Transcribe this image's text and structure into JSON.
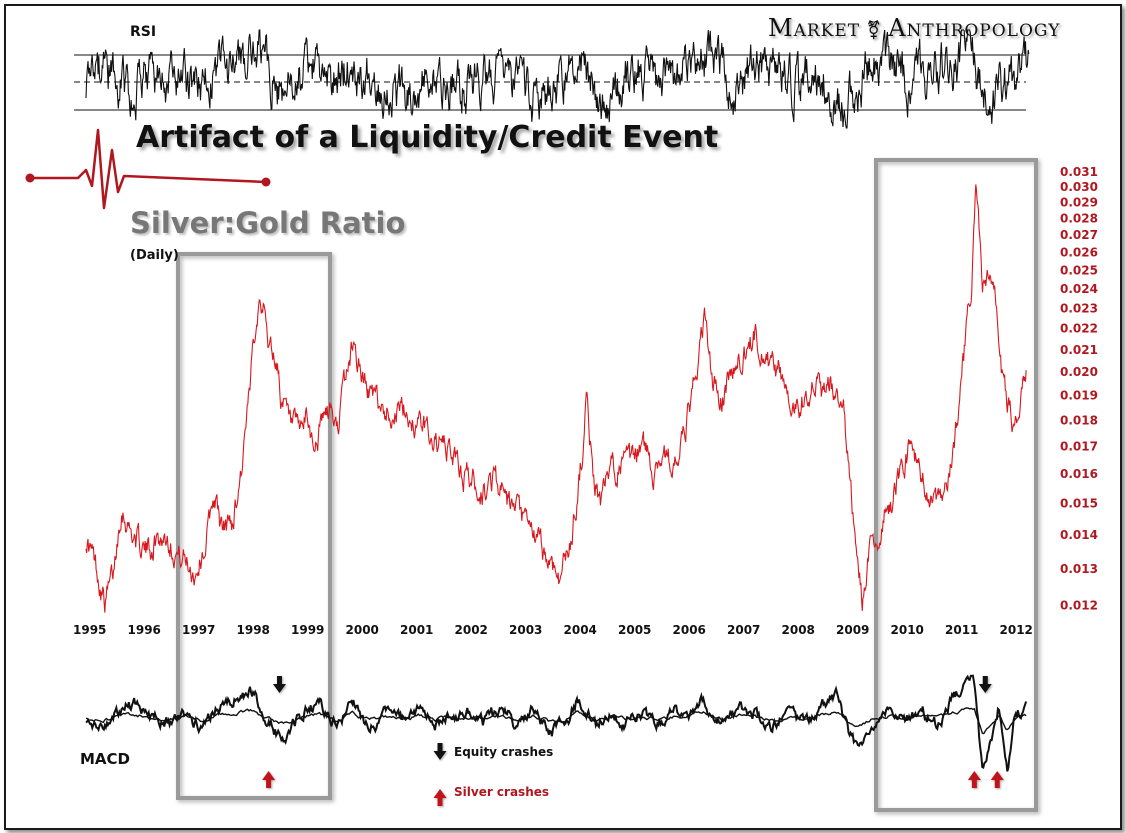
{
  "brand": {
    "left": "Market",
    "right": "Anthropology",
    "separator": "⚧"
  },
  "title": "Artifact of a Liquidity/Credit Event",
  "subtitle": "Silver:Gold Ratio",
  "frequency": "(Daily)",
  "panels": {
    "rsi_label": "RSI",
    "macd_label": "MACD"
  },
  "legend": {
    "equity": "Equity crashes",
    "silver": "Silver crashes"
  },
  "colors": {
    "ratio_line": "#d7191f",
    "axis_labels": "#b0171f",
    "macd_line": "#111111",
    "rsi_line": "#111111",
    "box": "#9a9a9a",
    "equity_arrow": "#111111",
    "silver_arrow": "#c0141a"
  },
  "chart_data": [
    {
      "type": "line",
      "title": "Silver:Gold Ratio",
      "scale": "log",
      "x_tick_labels": [
        "1995",
        "1996",
        "1997",
        "1998",
        "1999",
        "2000",
        "2001",
        "2002",
        "2003",
        "2004",
        "2005",
        "2006",
        "2007",
        "2008",
        "2009",
        "2010",
        "2011",
        "2012"
      ],
      "y_tick_labels": [
        "0.031",
        "0.030",
        "0.029",
        "0.028",
        "0.027",
        "0.026",
        "0.025",
        "0.024",
        "0.023",
        "0.022",
        "0.021",
        "0.020",
        "0.019",
        "0.018",
        "0.017",
        "0.016",
        "0.015",
        "0.014",
        "0.013",
        "0.012"
      ],
      "ylim": [
        0.012,
        0.031
      ],
      "series": [
        {
          "x": [
            1995.0,
            1995.2,
            1995.35,
            1995.5,
            1995.65,
            1995.8,
            1995.95,
            1996.1,
            1996.3,
            1996.5,
            1996.7,
            1996.85,
            1997.0,
            1997.2,
            1997.35,
            1997.5,
            1997.7,
            1997.85,
            1998.0,
            1998.1,
            1998.2,
            1998.35,
            1998.5,
            1998.6,
            1998.75,
            1998.9,
            1999.05,
            1999.2,
            1999.35,
            1999.5,
            1999.6,
            1999.75,
            1999.9,
            2000.1,
            2000.3,
            2000.5,
            2000.7,
            2000.9,
            2001.1,
            2001.3,
            2001.5,
            2001.7,
            2001.9,
            2002.1,
            2002.3,
            2002.5,
            2002.7,
            2002.9,
            2003.1,
            2003.3,
            2003.5,
            2003.7,
            2003.9,
            2004.05,
            2004.2,
            2004.3,
            2004.45,
            2004.6,
            2004.8,
            2005.0,
            2005.2,
            2005.4,
            2005.6,
            2005.8,
            2006.0,
            2006.2,
            2006.35,
            2006.5,
            2006.65,
            2006.8,
            2007.0,
            2007.15,
            2007.3,
            2007.5,
            2007.7,
            2007.9,
            2008.05,
            2008.2,
            2008.35,
            2008.5,
            2008.65,
            2008.8,
            2008.9,
            2009.0,
            2009.1,
            2009.25,
            2009.4,
            2009.55,
            2009.7,
            2009.85,
            2010.0,
            2010.15,
            2010.3,
            2010.45,
            2010.6,
            2010.75,
            2010.9,
            2011.05,
            2011.15,
            2011.25,
            2011.33,
            2011.45,
            2011.6,
            2011.7,
            2011.8,
            2011.95,
            2012.05,
            2012.15,
            2012.25
          ],
          "values": [
            0.0139,
            0.013,
            0.0121,
            0.0128,
            0.015,
            0.0142,
            0.0138,
            0.0135,
            0.0139,
            0.014,
            0.0134,
            0.0132,
            0.0129,
            0.0138,
            0.0153,
            0.0141,
            0.0145,
            0.0162,
            0.0188,
            0.0222,
            0.024,
            0.0214,
            0.0205,
            0.0187,
            0.0177,
            0.0174,
            0.018,
            0.017,
            0.018,
            0.0185,
            0.0175,
            0.0195,
            0.0214,
            0.0195,
            0.0188,
            0.0184,
            0.0184,
            0.0183,
            0.0178,
            0.0176,
            0.017,
            0.0168,
            0.016,
            0.0158,
            0.0153,
            0.016,
            0.015,
            0.0147,
            0.0142,
            0.0138,
            0.0132,
            0.0128,
            0.0138,
            0.0158,
            0.0188,
            0.016,
            0.015,
            0.016,
            0.0165,
            0.0162,
            0.0172,
            0.0162,
            0.0168,
            0.0162,
            0.0175,
            0.02,
            0.0225,
            0.0195,
            0.0188,
            0.0198,
            0.0205,
            0.021,
            0.0218,
            0.0205,
            0.02,
            0.0192,
            0.0185,
            0.019,
            0.0198,
            0.0188,
            0.0195,
            0.0188,
            0.0182,
            0.016,
            0.014,
            0.0121,
            0.0135,
            0.014,
            0.0148,
            0.0155,
            0.0165,
            0.017,
            0.016,
            0.0155,
            0.0148,
            0.015,
            0.0165,
            0.0195,
            0.0215,
            0.024,
            0.03,
            0.024,
            0.0245,
            0.0232,
            0.02,
            0.0185,
            0.0178,
            0.019,
            0.0202
          ]
        }
      ]
    },
    {
      "type": "line",
      "title": "RSI",
      "series": [
        {
          "x": [
            1995.0,
            1995.4,
            1995.8,
            1996.2,
            1996.6,
            1997.0,
            1997.3,
            1997.6,
            1997.9,
            1998.1,
            1998.3,
            1998.6,
            1998.9,
            1999.2,
            1999.5,
            1999.8,
            2000.1,
            2000.5,
            2000.9,
            2001.3,
            2001.7,
            2002.1,
            2002.5,
            2002.9,
            2003.3,
            2003.7,
            2004.1,
            2004.5,
            2004.9,
            2005.3,
            2005.7,
            2006.1,
            2006.5,
            2006.9,
            2007.3,
            2007.7,
            2008.1,
            2008.5,
            2008.9,
            2009.3,
            2009.7,
            2010.1,
            2010.5,
            2010.9,
            2011.2,
            2011.5,
            2011.8,
            2012.1,
            2012.3
          ],
          "values": [
            48,
            62,
            44,
            55,
            50,
            46,
            58,
            64,
            60,
            72,
            68,
            40,
            52,
            60,
            45,
            63,
            56,
            48,
            42,
            52,
            45,
            50,
            58,
            44,
            40,
            47,
            70,
            36,
            52,
            58,
            47,
            62,
            72,
            46,
            60,
            54,
            48,
            58,
            30,
            55,
            65,
            52,
            60,
            62,
            78,
            38,
            46,
            54,
            66
          ]
        }
      ]
    },
    {
      "type": "line",
      "title": "MACD",
      "series": [
        {
          "x": [
            1995.0,
            1995.3,
            1995.6,
            1995.9,
            1996.2,
            1996.5,
            1996.8,
            1997.1,
            1997.4,
            1997.7,
            1998.0,
            1998.2,
            1998.4,
            1998.6,
            1998.8,
            1999.0,
            1999.3,
            1999.6,
            1999.9,
            2000.2,
            2000.5,
            2000.8,
            2001.1,
            2001.4,
            2001.7,
            2002.0,
            2002.3,
            2002.6,
            2002.9,
            2003.2,
            2003.5,
            2003.8,
            2004.0,
            2004.2,
            2004.4,
            2004.6,
            2004.9,
            2005.2,
            2005.5,
            2005.8,
            2006.1,
            2006.3,
            2006.5,
            2006.7,
            2007.0,
            2007.3,
            2007.6,
            2007.9,
            2008.2,
            2008.5,
            2008.8,
            2009.0,
            2009.2,
            2009.4,
            2009.7,
            2010.0,
            2010.3,
            2010.6,
            2010.9,
            2011.1,
            2011.3,
            2011.45,
            2011.6,
            2011.75,
            2011.9,
            2012.05,
            2012.25
          ],
          "values": [
            -2,
            -6,
            4,
            10,
            0,
            -3,
            4,
            -8,
            6,
            12,
            20,
            8,
            -5,
            -14,
            -6,
            4,
            10,
            -6,
            12,
            -8,
            4,
            -2,
            6,
            -4,
            2,
            4,
            -3,
            6,
            -4,
            8,
            -10,
            -5,
            12,
            4,
            -6,
            5,
            -3,
            3,
            -2,
            4,
            6,
            16,
            4,
            -4,
            6,
            3,
            -6,
            4,
            -5,
            8,
            18,
            -14,
            -22,
            -6,
            4,
            -4,
            6,
            -3,
            12,
            22,
            26,
            -40,
            -18,
            8,
            -36,
            4,
            8
          ]
        }
      ],
      "annotations": [
        {
          "label": "Equity crashes",
          "x": [
            1998.55,
            2011.5
          ]
        },
        {
          "label": "Silver crashes",
          "x": [
            1998.35,
            2011.3,
            2011.72
          ]
        }
      ]
    }
  ]
}
